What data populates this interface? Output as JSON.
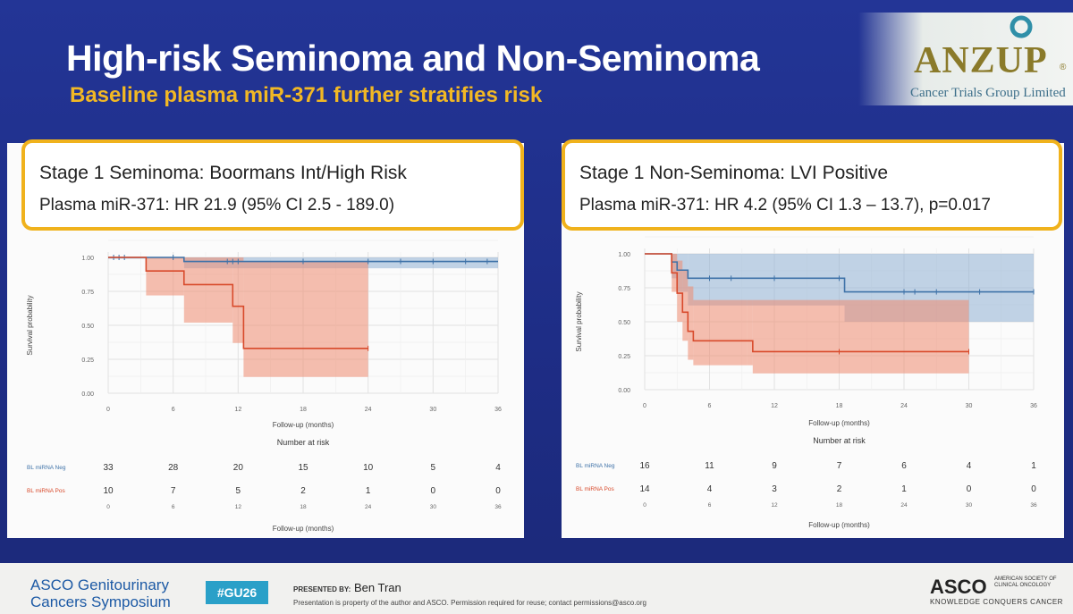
{
  "slide": {
    "title": "High-risk Seminoma and Non-Seminoma",
    "subtitle": "Baseline plasma miR-371 further stratifies risk"
  },
  "logo": {
    "name": "ANZUP",
    "sub": "Cancer Trials Group Limited",
    "reg": "®"
  },
  "left_box": {
    "title": "Stage 1 Seminoma:  Boormans Int/High Risk",
    "value": "Plasma miR-371:   HR 21.9 (95% CI 2.5 - 189.0)"
  },
  "right_box": {
    "title": "Stage 1 Non-Seminoma:  LVI Positive",
    "value": "Plasma miR-371:   HR 4.2 (95% CI 1.3 – 13.7), p=0.017"
  },
  "footer": {
    "symposium_line1": "ASCO Genitourinary",
    "symposium_line2": "Cancers Symposium",
    "hashtag": "#GU26",
    "presented_by_label": "PRESENTED BY:",
    "presenter": "Ben Tran",
    "note": "Presentation is property of the author and ASCO. Permission required for reuse; contact permissions@asco.org",
    "asco_logo": "ASCO",
    "asco_small": "AMERICAN SOCIETY OF CLINICAL ONCOLOGY",
    "asco_motto": "KNOWLEDGE CONQUERS CANCER"
  },
  "colors": {
    "neg": "#3e72a8",
    "neg_ci": "#8fb1d3",
    "pos": "#d84a2b",
    "pos_ci": "#ef8b6f",
    "accent": "#f0b21c"
  },
  "chart_data": [
    {
      "type": "line",
      "subtype": "kaplan-meier",
      "title": "Stage 1 Seminoma: Boormans Int/High Risk",
      "xlabel": "Follow-up (months)",
      "ylabel": "Survival probability",
      "xlim": [
        0,
        36
      ],
      "ylim": [
        0,
        1
      ],
      "xticks": [
        "0",
        "6",
        "12",
        "18",
        "24",
        "30",
        "36"
      ],
      "yticks": [
        "0.00",
        "0.25",
        "0.50",
        "0.75",
        "1.00"
      ],
      "series": [
        {
          "name": "BL miRNA Neg",
          "steps": [
            [
              0,
              1.0
            ],
            [
              7,
              0.97
            ],
            [
              24,
              0.97
            ],
            [
              36,
              0.97
            ]
          ],
          "ci_steps": [
            [
              0,
              0.99,
              1.0
            ],
            [
              7,
              0.92,
              1.0
            ],
            [
              24,
              0.92,
              1.0
            ],
            [
              36,
              0.92,
              1.0
            ]
          ],
          "censor_x": [
            0.5,
            1,
            1.5,
            6,
            11,
            11.5,
            12,
            18,
            24,
            27,
            30,
            33,
            35
          ],
          "risk": [
            "33",
            "28",
            "20",
            "15",
            "10",
            "5",
            "4"
          ]
        },
        {
          "name": "BL miRNA Pos",
          "steps": [
            [
              0,
              1.0
            ],
            [
              3.5,
              0.9
            ],
            [
              7,
              0.8
            ],
            [
              11.5,
              0.64
            ],
            [
              12.5,
              0.33
            ],
            [
              24,
              0.33
            ]
          ],
          "ci_steps": [
            [
              0,
              1.0,
              1.0
            ],
            [
              3.5,
              0.72,
              1.0
            ],
            [
              7,
              0.52,
              1.0
            ],
            [
              11.5,
              0.37,
              1.0
            ],
            [
              12.5,
              0.12,
              0.97
            ],
            [
              24,
              0.12,
              0.97
            ]
          ],
          "censor_x": [
            24
          ],
          "risk": [
            "10",
            "7",
            "5",
            "2",
            "1",
            "0",
            "0"
          ]
        }
      ],
      "risk_table_title": "Number at risk"
    },
    {
      "type": "line",
      "subtype": "kaplan-meier",
      "title": "Stage 1 Non-Seminoma: LVI Positive",
      "xlabel": "Follow-up (months)",
      "ylabel": "Survival probability",
      "xlim": [
        0,
        36
      ],
      "ylim": [
        0,
        1
      ],
      "xticks": [
        "0",
        "6",
        "12",
        "18",
        "24",
        "30",
        "36"
      ],
      "yticks": [
        "0.00",
        "0.25",
        "0.50",
        "0.75",
        "1.00"
      ],
      "series": [
        {
          "name": "BL miRNA Neg",
          "steps": [
            [
              0,
              1.0
            ],
            [
              2.5,
              0.94
            ],
            [
              3,
              0.88
            ],
            [
              4,
              0.82
            ],
            [
              18,
              0.82
            ],
            [
              18.5,
              0.72
            ],
            [
              36,
              0.72
            ]
          ],
          "ci_steps": [
            [
              0,
              1.0,
              1.0
            ],
            [
              2.5,
              0.82,
              1.0
            ],
            [
              3,
              0.72,
              1.0
            ],
            [
              4,
              0.62,
              1.0
            ],
            [
              18,
              0.62,
              1.0
            ],
            [
              18.5,
              0.5,
              1.0
            ],
            [
              36,
              0.5,
              1.0
            ]
          ],
          "censor_x": [
            6,
            8,
            12,
            18,
            24,
            25,
            27,
            31,
            36
          ],
          "risk": [
            "16",
            "11",
            "9",
            "7",
            "6",
            "4",
            "1"
          ]
        },
        {
          "name": "BL miRNA Pos",
          "steps": [
            [
              0,
              1.0
            ],
            [
              2.5,
              0.86
            ],
            [
              3,
              0.71
            ],
            [
              3.5,
              0.57
            ],
            [
              4,
              0.43
            ],
            [
              4.5,
              0.36
            ],
            [
              9.5,
              0.36
            ],
            [
              10,
              0.28
            ],
            [
              30,
              0.28
            ]
          ],
          "ci_steps": [
            [
              0,
              1.0,
              1.0
            ],
            [
              2.5,
              0.72,
              1.0
            ],
            [
              3,
              0.5,
              0.95
            ],
            [
              3.5,
              0.36,
              0.88
            ],
            [
              4,
              0.22,
              0.76
            ],
            [
              4.5,
              0.18,
              0.66
            ],
            [
              9.5,
              0.18,
              0.66
            ],
            [
              10,
              0.12,
              0.66
            ],
            [
              30,
              0.12,
              0.66
            ]
          ],
          "censor_x": [
            18,
            30
          ],
          "risk": [
            "14",
            "4",
            "3",
            "2",
            "1",
            "0",
            "0"
          ]
        }
      ],
      "risk_table_title": "Number at risk"
    }
  ]
}
